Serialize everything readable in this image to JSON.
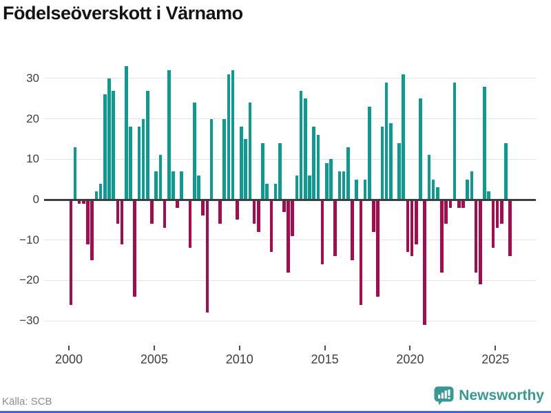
{
  "header": {
    "title": "Födelseöverskott i Värnamo"
  },
  "footer": {
    "source": "Källa: SCB",
    "brand": "Newsworthy",
    "brand_icon": "newsworthy-bubble-barchart-icon"
  },
  "colors": {
    "positive": "#0e9b8f",
    "negative": "#a50b4d",
    "grid": "#e3e3e3",
    "zero_line": "#3d3d3d",
    "axis_text": "#3f3f3f",
    "title_text": "#141414",
    "source_text": "#8c8c8c",
    "brand": "#379a92",
    "bottom_strip": "#4263eb",
    "background": "#ffffff"
  },
  "chart_data": {
    "type": "bar",
    "title": "Födelseöverskott i Värnamo",
    "frequency": "quarterly",
    "x_start": "2000-Q1",
    "x_end": "2025-Q4",
    "values": [
      -26,
      13,
      -1,
      -1,
      -11,
      -15,
      2,
      4,
      26,
      30,
      27,
      -6,
      -11,
      33,
      18,
      -24,
      18,
      20,
      27,
      -6,
      7,
      11,
      -7,
      32,
      7,
      -2,
      7,
      0,
      -12,
      24,
      6,
      -4,
      -28,
      20,
      0,
      -6,
      20,
      31,
      32,
      -5,
      18,
      15,
      24,
      -6,
      -8,
      14,
      4,
      -13,
      4,
      14,
      -3,
      -18,
      -9,
      6,
      27,
      25,
      6,
      18,
      16,
      -16,
      9,
      10,
      -14,
      7,
      7,
      13,
      -15,
      5,
      -26,
      5,
      23,
      -8,
      -24,
      18,
      29,
      19,
      0,
      14,
      31,
      -13,
      -14,
      -11,
      25,
      -31,
      11,
      5,
      3,
      -18,
      -6,
      -2,
      29,
      -2,
      -2,
      5,
      7,
      -18,
      -21,
      28,
      2,
      -12,
      -7,
      -6,
      14,
      -14
    ],
    "x_tick_years": [
      2000,
      2005,
      2010,
      2015,
      2020,
      2025
    ],
    "x_tick_labels": [
      "2000",
      "2005",
      "2010",
      "2015",
      "2020",
      "2025"
    ],
    "yticks": [
      30,
      20,
      10,
      0,
      -10,
      -20,
      -30
    ],
    "y_tick_labels": [
      "30",
      "20",
      "10",
      "0",
      "−10",
      "−20",
      "−30"
    ],
    "ylim": [
      -33,
      35
    ],
    "grid": "horizontal",
    "legend": "none",
    "bar_color_rule": "teal when positive, crimson when negative"
  }
}
